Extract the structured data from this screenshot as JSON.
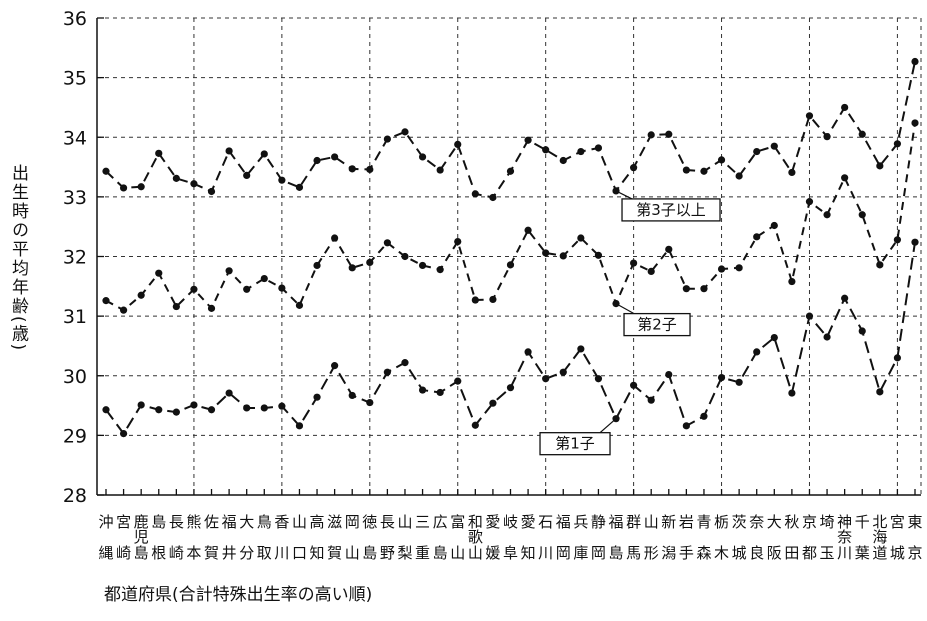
{
  "chart_data": {
    "type": "line",
    "ylabel": "出生時の平均年齢(歳)",
    "xlabel": "都道府県(合計特殊出生率の高い順)",
    "ylim": [
      28,
      36
    ],
    "yticks": [
      28,
      29,
      30,
      31,
      32,
      33,
      34,
      35,
      36
    ],
    "grid": "dashed",
    "categories": [
      "沖縄",
      "宮崎",
      "鹿児島",
      "島根",
      "長崎",
      "熊本",
      "佐賀",
      "福井",
      "大分",
      "鳥取",
      "香川",
      "山口",
      "高知",
      "滋賀",
      "岡山",
      "徳島",
      "長野",
      "山梨",
      "三重",
      "広島",
      "富山",
      "和歌山",
      "愛媛",
      "岐阜",
      "愛知",
      "石川",
      "福岡",
      "兵庫",
      "静岡",
      "福島",
      "群馬",
      "山形",
      "新潟",
      "岩手",
      "青森",
      "栃木",
      "茨城",
      "奈良",
      "大阪",
      "秋田",
      "京都",
      "埼玉",
      "神奈川",
      "千葉",
      "北海道",
      "宮城",
      "東京"
    ],
    "category_labels_top": [
      "沖",
      "宮",
      "鹿",
      "島",
      "長",
      "熊",
      "佐",
      "福",
      "大",
      "鳥",
      "香",
      "山",
      "高",
      "滋",
      "岡",
      "徳",
      "長",
      "山",
      "三",
      "広",
      "富",
      "和",
      "愛",
      "岐",
      "愛",
      "石",
      "福",
      "兵",
      "静",
      "福",
      "群",
      "山",
      "新",
      "岩",
      "青",
      "栃",
      "茨",
      "奈",
      "大",
      "秋",
      "京",
      "埼",
      "神",
      "千",
      "北",
      "宮",
      "東"
    ],
    "category_labels_mid": [
      "",
      "",
      "児",
      "",
      "",
      "",
      "",
      "",
      "",
      "",
      "",
      "",
      "",
      "",
      "",
      "",
      "",
      "",
      "",
      "",
      "",
      "歌",
      "",
      "",
      "",
      "",
      "",
      "",
      "",
      "",
      "",
      "",
      "",
      "",
      "",
      "",
      "",
      "",
      "",
      "",
      "",
      "",
      "奈",
      "",
      "海",
      "",
      ""
    ],
    "category_labels_bottom": [
      "縄",
      "崎",
      "島",
      "根",
      "崎",
      "本",
      "賀",
      "井",
      "分",
      "取",
      "川",
      "口",
      "知",
      "賀",
      "山",
      "島",
      "野",
      "梨",
      "重",
      "島",
      "山",
      "山",
      "媛",
      "阜",
      "知",
      "川",
      "岡",
      "庫",
      "岡",
      "島",
      "馬",
      "形",
      "潟",
      "手",
      "森",
      "木",
      "城",
      "良",
      "阪",
      "田",
      "都",
      "玉",
      "川",
      "葉",
      "道",
      "城",
      "京"
    ],
    "series": [
      {
        "name": "第3子以上",
        "values": [
          33.43,
          33.15,
          33.17,
          33.73,
          33.31,
          33.22,
          33.09,
          33.77,
          33.36,
          33.72,
          33.28,
          33.16,
          33.61,
          33.67,
          33.47,
          33.46,
          33.97,
          34.09,
          33.67,
          33.45,
          33.88,
          33.05,
          32.99,
          33.43,
          33.95,
          33.79,
          33.61,
          33.76,
          33.82,
          33.1,
          33.49,
          34.04,
          34.05,
          33.45,
          33.43,
          33.62,
          33.35,
          33.76,
          33.85,
          33.41,
          34.36,
          34.01,
          34.5,
          34.05,
          33.52,
          33.89,
          35.27
        ]
      },
      {
        "name": "第2子",
        "values": [
          31.26,
          31.1,
          31.35,
          31.72,
          31.16,
          31.45,
          31.13,
          31.76,
          31.45,
          31.63,
          31.47,
          31.18,
          31.85,
          32.31,
          31.81,
          31.9,
          32.23,
          32.0,
          31.85,
          31.78,
          32.25,
          31.27,
          31.28,
          31.86,
          32.44,
          32.06,
          32.01,
          32.31,
          32.02,
          31.21,
          31.89,
          31.75,
          32.12,
          31.46,
          31.46,
          31.79,
          31.81,
          32.33,
          32.52,
          31.58,
          32.92,
          32.7,
          33.32,
          32.7,
          31.86,
          32.28,
          34.24
        ]
      },
      {
        "name": "第1子",
        "values": [
          29.43,
          29.03,
          29.51,
          29.43,
          29.39,
          29.51,
          29.43,
          29.71,
          29.46,
          29.46,
          29.49,
          29.16,
          29.64,
          30.17,
          29.67,
          29.55,
          30.06,
          30.22,
          29.76,
          29.72,
          29.91,
          29.17,
          29.54,
          29.8,
          30.4,
          29.95,
          30.06,
          30.45,
          29.95,
          29.28,
          29.84,
          29.59,
          30.02,
          29.16,
          29.32,
          29.97,
          29.89,
          30.4,
          30.64,
          29.71,
          31.0,
          30.65,
          31.3,
          30.75,
          29.73,
          30.3,
          32.24
        ]
      }
    ],
    "annotations": [
      {
        "label": "第3子以上",
        "series_index": 0,
        "point_index": 29
      },
      {
        "label": "第2子",
        "series_index": 1,
        "point_index": 29
      },
      {
        "label": "第1子",
        "series_index": 2,
        "point_index": 29
      }
    ]
  }
}
